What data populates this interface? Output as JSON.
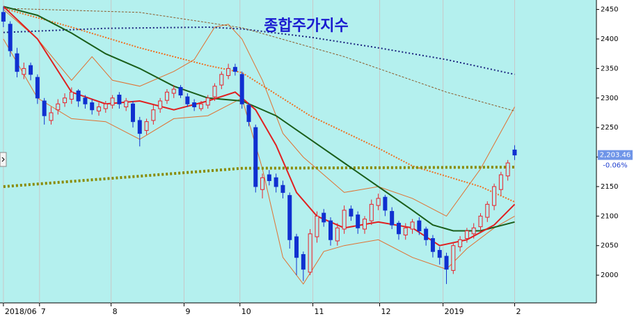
{
  "chart_data": {
    "type": "candlestick",
    "title": "종합주가지수",
    "xlim": [
      -0.5,
      87
    ],
    "ylim": [
      1953,
      2466
    ],
    "xticks": [
      {
        "value": 0,
        "label": "2018/06"
      },
      {
        "value": 5.3,
        "label": "7"
      },
      {
        "value": 15.8,
        "label": "8"
      },
      {
        "value": 26.5,
        "label": "9"
      },
      {
        "value": 34.7,
        "label": "10"
      },
      {
        "value": 45.4,
        "label": "11"
      },
      {
        "value": 55.2,
        "label": "12"
      },
      {
        "value": 64.5,
        "label": "2019"
      },
      {
        "value": 75,
        "label": "2"
      }
    ],
    "yticks": [
      2000,
      2050,
      2100,
      2150,
      2200,
      2250,
      2300,
      2350,
      2400,
      2450
    ],
    "up_color": "#e8202a",
    "down_color": "#1030d0",
    "open": [
      2445,
      2425,
      2375,
      2340,
      2355,
      2335,
      2295,
      2262,
      2280,
      2292,
      2298,
      2312,
      2300,
      2292,
      2278,
      2282,
      2288,
      2305,
      2285,
      2290,
      2262,
      2245,
      2262,
      2282,
      2296,
      2308,
      2318,
      2302,
      2292,
      2282,
      2288,
      2302,
      2322,
      2338,
      2352,
      2340,
      2288,
      2250,
      2145,
      2170,
      2165,
      2152,
      2135,
      2065,
      2035,
      2005,
      2065,
      2105,
      2092,
      2058,
      2078,
      2112,
      2102,
      2078,
      2092,
      2118,
      2132,
      2108,
      2088,
      2068,
      2078,
      2092,
      2078,
      2062,
      2042,
      2032,
      2008,
      2048,
      2062,
      2070,
      2082,
      2098,
      2118,
      2145,
      2168,
      2212
    ],
    "high": [
      2455,
      2430,
      2385,
      2360,
      2360,
      2340,
      2300,
      2285,
      2298,
      2308,
      2318,
      2315,
      2305,
      2298,
      2292,
      2295,
      2305,
      2310,
      2300,
      2295,
      2268,
      2265,
      2288,
      2300,
      2315,
      2322,
      2322,
      2308,
      2298,
      2295,
      2305,
      2325,
      2345,
      2358,
      2358,
      2345,
      2292,
      2255,
      2172,
      2178,
      2172,
      2160,
      2140,
      2070,
      2040,
      2078,
      2108,
      2112,
      2098,
      2088,
      2118,
      2118,
      2108,
      2100,
      2128,
      2138,
      2136,
      2115,
      2092,
      2088,
      2095,
      2098,
      2082,
      2068,
      2048,
      2038,
      2056,
      2066,
      2080,
      2088,
      2105,
      2125,
      2155,
      2175,
      2195,
      2220
    ],
    "low": [
      2420,
      2370,
      2335,
      2332,
      2330,
      2290,
      2255,
      2255,
      2272,
      2285,
      2290,
      2285,
      2282,
      2272,
      2270,
      2275,
      2282,
      2282,
      2278,
      2250,
      2218,
      2238,
      2255,
      2275,
      2290,
      2300,
      2300,
      2285,
      2278,
      2278,
      2282,
      2295,
      2315,
      2332,
      2338,
      2282,
      2252,
      2140,
      2130,
      2152,
      2140,
      2130,
      2045,
      2000,
      1990,
      2000,
      2055,
      2082,
      2050,
      2050,
      2070,
      2092,
      2070,
      2070,
      2085,
      2110,
      2100,
      2078,
      2060,
      2060,
      2070,
      2068,
      2050,
      2030,
      2018,
      1985,
      2002,
      2040,
      2055,
      2062,
      2075,
      2090,
      2110,
      2135,
      2160,
      2195
    ],
    "close": [
      2430,
      2380,
      2345,
      2350,
      2340,
      2300,
      2270,
      2275,
      2290,
      2300,
      2310,
      2295,
      2290,
      2280,
      2285,
      2290,
      2300,
      2290,
      2295,
      2260,
      2240,
      2260,
      2280,
      2295,
      2310,
      2315,
      2305,
      2290,
      2285,
      2290,
      2300,
      2320,
      2340,
      2350,
      2345,
      2290,
      2260,
      2150,
      2165,
      2160,
      2150,
      2140,
      2060,
      2030,
      2010,
      2070,
      2100,
      2090,
      2060,
      2080,
      2110,
      2100,
      2080,
      2095,
      2120,
      2130,
      2110,
      2085,
      2070,
      2080,
      2090,
      2075,
      2060,
      2040,
      2030,
      2010,
      2050,
      2060,
      2075,
      2080,
      2100,
      2120,
      2150,
      2170,
      2190,
      2203.46
    ],
    "lines": [
      {
        "color": "#e07030",
        "width": 1,
        "dash": "none",
        "x": [
          0,
          5,
          10,
          13,
          16,
          20,
          25,
          28,
          31,
          33,
          35,
          38,
          41,
          44,
          47,
          50,
          55,
          60,
          65,
          70,
          75
        ],
        "values": [
          2450,
          2400,
          2330,
          2370,
          2330,
          2320,
          2345,
          2365,
          2420,
          2425,
          2400,
          2330,
          2240,
          2200,
          2170,
          2140,
          2150,
          2130,
          2100,
          2180,
          2285
        ]
      },
      {
        "color": "#e07030",
        "width": 1,
        "dash": "none",
        "x": [
          0,
          5,
          10,
          15,
          20,
          25,
          30,
          35,
          38,
          41,
          44,
          47,
          50,
          55,
          60,
          65,
          68,
          72,
          75
        ],
        "values": [
          2400,
          2300,
          2265,
          2260,
          2230,
          2265,
          2270,
          2300,
          2180,
          2030,
          1985,
          2040,
          2050,
          2060,
          2030,
          2010,
          2045,
          2080,
          2100
        ]
      },
      {
        "color": "#1a237e",
        "width": 2,
        "dash": "2 3",
        "x": [
          0,
          15,
          30,
          35,
          45,
          55,
          65,
          75
        ],
        "values": [
          2411,
          2418,
          2420,
          2417,
          2403,
          2385,
          2365,
          2340
        ]
      },
      {
        "color": "#8b5a2b",
        "width": 1,
        "dash": "3 2",
        "x": [
          0,
          20,
          35,
          50,
          65,
          75
        ],
        "values": [
          2452,
          2445,
          2419,
          2370,
          2310,
          2278
        ]
      },
      {
        "color": "#f07020",
        "width": 2,
        "dash": "2 2",
        "x": [
          0,
          10,
          20,
          30,
          35,
          45,
          55,
          60,
          70,
          75
        ],
        "values": [
          2452,
          2420,
          2385,
          2355,
          2343,
          2270,
          2215,
          2185,
          2150,
          2124
        ]
      },
      {
        "color": "#8a8a00",
        "width": 4,
        "dash": "3 3",
        "x": [
          0,
          35,
          75
        ],
        "values": [
          2150,
          2181,
          2183
        ]
      },
      {
        "color": "#1a5e1a",
        "width": 2,
        "dash": "none",
        "x": [
          0,
          5,
          10,
          15,
          20,
          25,
          30,
          35,
          40,
          45,
          50,
          55,
          60,
          63,
          66,
          70,
          75
        ],
        "values": [
          2455,
          2440,
          2410,
          2375,
          2350,
          2320,
          2300,
          2295,
          2270,
          2230,
          2190,
          2150,
          2110,
          2085,
          2075,
          2075,
          2090
        ]
      },
      {
        "color": "#e02020",
        "width": 2,
        "dash": "none",
        "x": [
          0,
          5,
          10,
          15,
          20,
          25,
          30,
          34,
          37,
          40,
          43,
          46,
          50,
          55,
          60,
          64,
          68,
          72,
          75
        ],
        "values": [
          2455,
          2400,
          2310,
          2290,
          2295,
          2280,
          2295,
          2310,
          2280,
          2220,
          2140,
          2100,
          2080,
          2090,
          2080,
          2050,
          2060,
          2085,
          2120
        ]
      }
    ],
    "last_price": {
      "value": 2203.46,
      "label": "2,203.46"
    },
    "change_label": "-0.06%"
  }
}
